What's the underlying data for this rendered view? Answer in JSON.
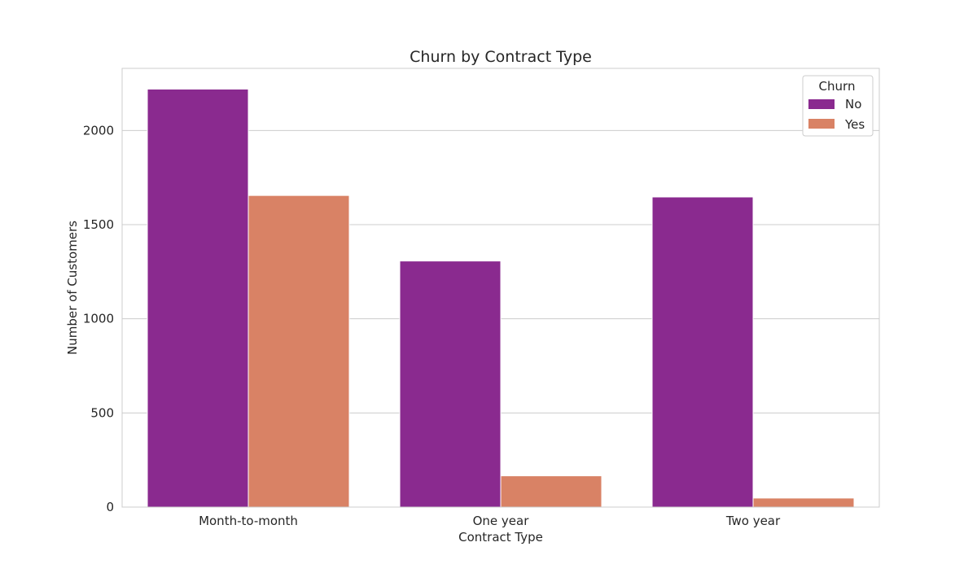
{
  "chart_data": {
    "type": "bar",
    "title": "Churn by Contract Type",
    "xlabel": "Contract Type",
    "ylabel": "Number of Customers",
    "categories": [
      "Month-to-month",
      "One year",
      "Two year"
    ],
    "series": [
      {
        "name": "No",
        "values": [
          2220,
          1307,
          1647
        ],
        "color": "#8a2a8f"
      },
      {
        "name": "Yes",
        "values": [
          1655,
          166,
          48
        ],
        "color": "#d98265"
      }
    ],
    "ylim": [
      0,
      2330
    ],
    "yticks": [
      0,
      500,
      1000,
      1500,
      2000
    ],
    "grid": "y",
    "legend": {
      "title": "Churn",
      "placement": "top-right"
    }
  }
}
